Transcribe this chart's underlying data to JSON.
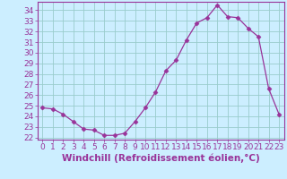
{
  "x": [
    0,
    1,
    2,
    3,
    4,
    5,
    6,
    7,
    8,
    9,
    10,
    11,
    12,
    13,
    14,
    15,
    16,
    17,
    18,
    19,
    20,
    21,
    22,
    23
  ],
  "y": [
    24.8,
    24.7,
    24.2,
    23.5,
    22.8,
    22.7,
    22.2,
    22.2,
    22.4,
    23.5,
    24.8,
    26.3,
    28.3,
    29.3,
    31.2,
    32.8,
    33.3,
    34.5,
    33.4,
    33.3,
    32.3,
    31.5,
    26.6,
    24.2
  ],
  "line_color": "#993399",
  "marker": "D",
  "marker_size": 2.5,
  "background_color": "#cceeff",
  "grid_color": "#99cccc",
  "xlabel": "Windchill (Refroidissement éolien,°C)",
  "ylim": [
    21.8,
    34.8
  ],
  "xlim": [
    -0.5,
    23.5
  ],
  "yticks": [
    22,
    23,
    24,
    25,
    26,
    27,
    28,
    29,
    30,
    31,
    32,
    33,
    34
  ],
  "xticks": [
    0,
    1,
    2,
    3,
    4,
    5,
    6,
    7,
    8,
    9,
    10,
    11,
    12,
    13,
    14,
    15,
    16,
    17,
    18,
    19,
    20,
    21,
    22,
    23
  ],
  "tick_label_fontsize": 6.5,
  "xlabel_fontsize": 7.5,
  "tick_color": "#993399",
  "axis_color": "#993399",
  "spine_color": "#993399"
}
